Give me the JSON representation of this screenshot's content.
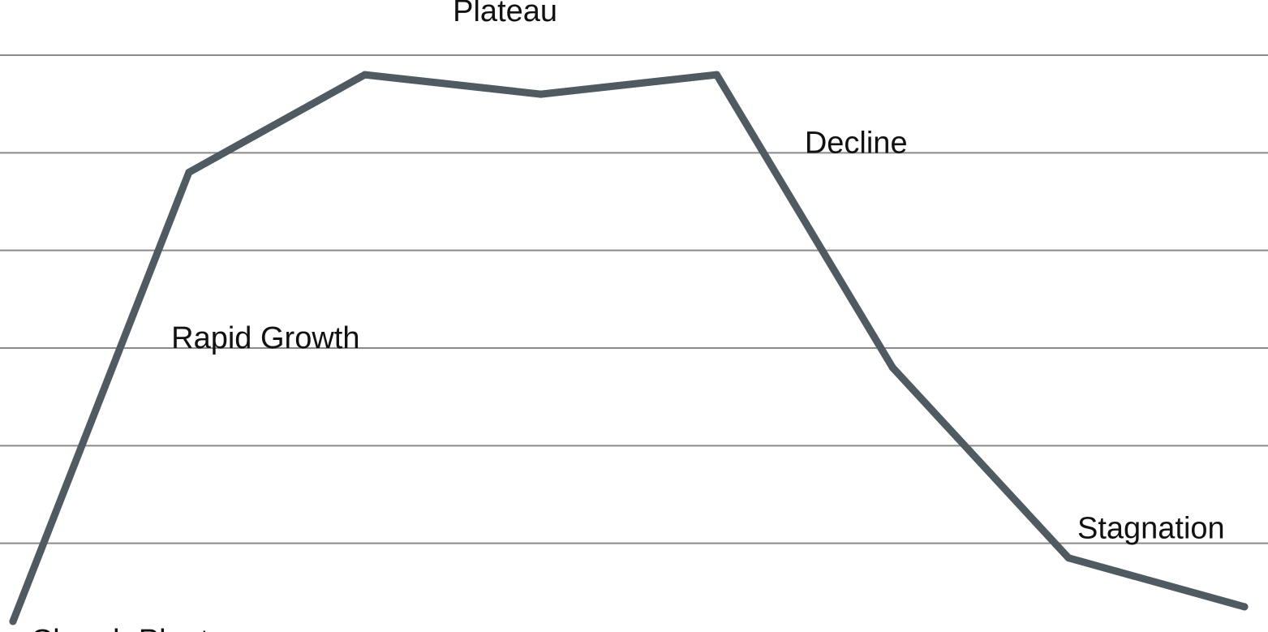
{
  "chart_data": {
    "type": "line",
    "title": "",
    "xlabel": "",
    "ylabel": "",
    "grid": true,
    "legend": "none",
    "ylim": [
      0,
      6
    ],
    "xlim": [
      0,
      7
    ],
    "line_color": "#4f5a61",
    "grid_color": "#8a8a8a",
    "points": [
      {
        "x": 0.0,
        "y": 0.2
      },
      {
        "x": 1.0,
        "y": 4.8
      },
      {
        "x": 2.0,
        "y": 5.8
      },
      {
        "x": 3.0,
        "y": 5.6
      },
      {
        "x": 4.0,
        "y": 5.8
      },
      {
        "x": 5.0,
        "y": 2.8
      },
      {
        "x": 6.0,
        "y": 0.85
      },
      {
        "x": 7.0,
        "y": 0.35
      }
    ],
    "annotations": [
      {
        "text": "Church Plant",
        "x": 0.1,
        "y": -0.1
      },
      {
        "text": "Rapid Growth",
        "x": 0.9,
        "y": 3.0
      },
      {
        "text": "Plateau",
        "x": 2.5,
        "y": 6.35
      },
      {
        "text": "Decline",
        "x": 4.5,
        "y": 5.0
      },
      {
        "text": "Stagnation",
        "x": 6.05,
        "y": 1.05
      }
    ]
  }
}
